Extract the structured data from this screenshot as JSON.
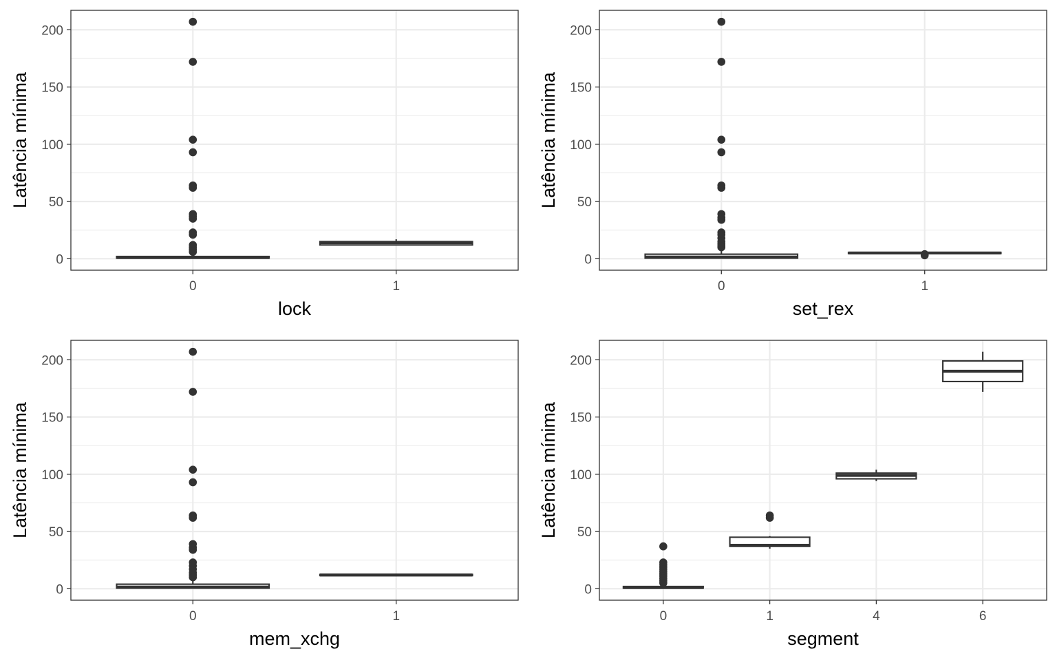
{
  "chart_data": [
    {
      "type": "boxplot",
      "xlabel": "lock",
      "ylabel": "Latência mínima",
      "ylim": [
        -10,
        217
      ],
      "yticks": [
        0,
        50,
        100,
        150,
        200
      ],
      "grid": true,
      "categories": [
        "0",
        "1"
      ],
      "boxes": [
        {
          "category": "0",
          "q1": 0.5,
          "median": 1.0,
          "q3": 2.0,
          "whisker_low": 0,
          "whisker_high": 4,
          "outliers": [
            207,
            172,
            104,
            93,
            64,
            62,
            39,
            37,
            35,
            23,
            21,
            12,
            10,
            8,
            6
          ]
        },
        {
          "category": "1",
          "q1": 12,
          "median": 14,
          "q3": 15,
          "whisker_low": 12,
          "whisker_high": 17,
          "outliers": []
        }
      ]
    },
    {
      "type": "boxplot",
      "xlabel": "set_rex",
      "ylabel": "Latência mínima",
      "ylim": [
        -10,
        217
      ],
      "yticks": [
        0,
        50,
        100,
        150,
        200
      ],
      "grid": true,
      "categories": [
        "0",
        "1"
      ],
      "boxes": [
        {
          "category": "0",
          "q1": 0.5,
          "median": 1.5,
          "q3": 4.0,
          "whisker_low": 0,
          "whisker_high": 8,
          "outliers": [
            207,
            172,
            104,
            93,
            64,
            62,
            39,
            36,
            34,
            23,
            21,
            18,
            15,
            13,
            11,
            10
          ]
        },
        {
          "category": "1",
          "q1": 4.5,
          "median": 5,
          "q3": 5.5,
          "whisker_low": 4,
          "whisker_high": 6,
          "outliers": [
            4,
            3
          ]
        }
      ]
    },
    {
      "type": "boxplot",
      "xlabel": "mem_xchg",
      "ylabel": "Latência mínima",
      "ylim": [
        -10,
        217
      ],
      "yticks": [
        0,
        50,
        100,
        150,
        200
      ],
      "grid": true,
      "categories": [
        "0",
        "1"
      ],
      "boxes": [
        {
          "category": "0",
          "q1": 0.5,
          "median": 1.5,
          "q3": 4.0,
          "whisker_low": 0,
          "whisker_high": 8,
          "outliers": [
            207,
            172,
            104,
            93,
            64,
            62,
            39,
            36,
            34,
            23,
            20,
            17,
            14,
            12,
            10
          ]
        },
        {
          "category": "1",
          "q1": 11.5,
          "median": 12,
          "q3": 12.5,
          "whisker_low": 11.5,
          "whisker_high": 12.5,
          "outliers": []
        }
      ]
    },
    {
      "type": "boxplot",
      "xlabel": "segment",
      "ylabel": "Latência mínima",
      "ylim": [
        -10,
        217
      ],
      "yticks": [
        0,
        50,
        100,
        150,
        200
      ],
      "grid": true,
      "categories": [
        "0",
        "1",
        "4",
        "6"
      ],
      "boxes": [
        {
          "category": "0",
          "q1": 0.5,
          "median": 1.0,
          "q3": 2.0,
          "whisker_low": 0,
          "whisker_high": 4,
          "outliers": [
            37,
            23,
            21,
            19,
            17,
            15,
            13,
            11,
            9,
            7,
            5
          ]
        },
        {
          "category": "1",
          "q1": 37,
          "median": 38,
          "q3": 45,
          "whisker_low": 35,
          "whisker_high": 46,
          "outliers": [
            64,
            62
          ]
        },
        {
          "category": "4",
          "q1": 96,
          "median": 99,
          "q3": 101,
          "whisker_low": 94,
          "whisker_high": 104,
          "outliers": []
        },
        {
          "category": "6",
          "q1": 181,
          "median": 190,
          "q3": 199,
          "whisker_low": 172,
          "whisker_high": 207,
          "outliers": []
        }
      ]
    }
  ]
}
